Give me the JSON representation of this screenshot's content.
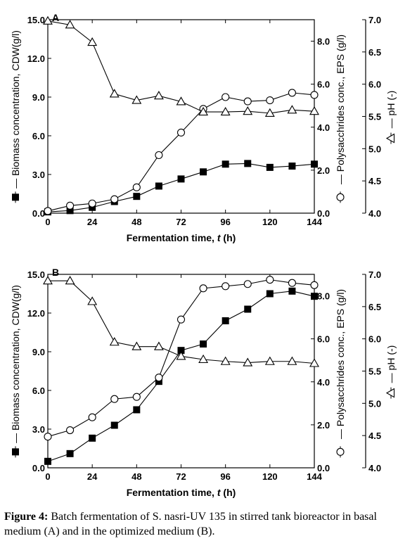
{
  "caption": {
    "label": "Figure 4:",
    "text": "Batch fermentation of S. nasri-UV 135 in stirred tank bioreactor in basal medium (A) and in the optimized medium (B)."
  },
  "colors": {
    "ink": "#000000",
    "background": "#ffffff"
  },
  "chart_data": [
    {
      "type": "line",
      "panel_label": "A",
      "xlabel_text": "Fermentation time, ",
      "xlabel_var": "t",
      "xlabel_unit": " (h)",
      "xlim": [
        0,
        144
      ],
      "xticks": [
        0,
        24,
        48,
        72,
        96,
        120,
        144
      ],
      "axes": {
        "left": {
          "label": "Biomass concentration, CDW(g/l)",
          "lim": [
            0,
            15
          ],
          "ticks": [
            0,
            3,
            6,
            9,
            12,
            15
          ],
          "tick_labels": [
            "0.0",
            "3.0",
            "6.0",
            "9.0",
            "12.0",
            "15.0"
          ]
        },
        "mid": {
          "label": "Polysacchrides conc., EPS (g/l)",
          "lim": [
            0,
            9
          ],
          "ticks": [
            0,
            2,
            4,
            6,
            8
          ],
          "tick_labels": [
            "0.0",
            "2.0",
            "4.0",
            "6.0",
            "8.0"
          ]
        },
        "right": {
          "label": "pH (-)",
          "lim": [
            4.0,
            7.0
          ],
          "ticks": [
            4.0,
            4.5,
            5.0,
            5.5,
            6.0,
            6.5,
            7.0
          ],
          "tick_labels": [
            "4.0",
            "4.5",
            "5.0",
            "5.5",
            "6.0",
            "6.5",
            "7.0"
          ]
        }
      },
      "series": [
        {
          "axis": "left",
          "marker": "square",
          "x": [
            0,
            12,
            24,
            36,
            48,
            60,
            72,
            84,
            96,
            108,
            120,
            132,
            144
          ],
          "y": [
            0.1,
            0.2,
            0.45,
            0.9,
            1.3,
            2.1,
            2.65,
            3.2,
            3.8,
            3.85,
            3.55,
            3.65,
            3.8
          ]
        },
        {
          "axis": "mid",
          "marker": "circle",
          "x": [
            0,
            12,
            24,
            36,
            48,
            60,
            72,
            84,
            96,
            108,
            120,
            132,
            144
          ],
          "y": [
            0.1,
            0.35,
            0.45,
            0.65,
            1.2,
            2.7,
            3.75,
            4.85,
            5.4,
            5.2,
            5.25,
            5.6,
            5.5
          ]
        },
        {
          "axis": "right",
          "marker": "triangle",
          "x": [
            0,
            12,
            24,
            36,
            48,
            60,
            72,
            84,
            96,
            108,
            120,
            132,
            144
          ],
          "y": [
            6.98,
            6.92,
            6.65,
            5.85,
            5.75,
            5.82,
            5.73,
            5.57,
            5.57,
            5.58,
            5.55,
            5.6,
            5.58
          ]
        }
      ]
    },
    {
      "type": "line",
      "panel_label": "B",
      "xlabel_text": "Fermentation time, ",
      "xlabel_var": "t",
      "xlabel_unit": " (h)",
      "xlim": [
        0,
        144
      ],
      "xticks": [
        0,
        24,
        48,
        72,
        96,
        120,
        144
      ],
      "axes": {
        "left": {
          "label": "Biomass concentration, CDW(g/l)",
          "lim": [
            0,
            15
          ],
          "ticks": [
            0,
            3,
            6,
            9,
            12,
            15
          ],
          "tick_labels": [
            "0.0",
            "3.0",
            "6.0",
            "9.0",
            "12.0",
            "15.0"
          ]
        },
        "mid": {
          "label": "Polysacchrides conc., EPS (g/l)",
          "lim": [
            0,
            9
          ],
          "ticks": [
            0,
            2,
            4,
            6,
            8
          ],
          "tick_labels": [
            "0.0",
            "2.0",
            "4.0",
            "6.0",
            "8.0"
          ]
        },
        "right": {
          "label": "pH (-)",
          "lim": [
            4.0,
            7.0
          ],
          "ticks": [
            4.0,
            4.5,
            5.0,
            5.5,
            6.0,
            6.5,
            7.0
          ],
          "tick_labels": [
            "4.0",
            "4.5",
            "5.0",
            "5.5",
            "6.0",
            "6.5",
            "7.0"
          ]
        }
      },
      "series": [
        {
          "axis": "left",
          "marker": "square",
          "x": [
            0,
            12,
            24,
            36,
            48,
            60,
            72,
            84,
            96,
            108,
            120,
            132,
            144
          ],
          "y": [
            0.5,
            1.1,
            2.3,
            3.3,
            4.5,
            6.7,
            9.1,
            9.6,
            11.4,
            12.3,
            13.5,
            13.7,
            13.3
          ]
        },
        {
          "axis": "mid",
          "marker": "circle",
          "x": [
            0,
            12,
            24,
            36,
            48,
            60,
            72,
            84,
            96,
            108,
            120,
            132,
            144
          ],
          "y": [
            1.45,
            1.75,
            2.35,
            3.2,
            3.3,
            4.2,
            6.9,
            8.35,
            8.45,
            8.55,
            8.75,
            8.6,
            8.5
          ]
        },
        {
          "axis": "right",
          "marker": "triangle",
          "x": [
            0,
            12,
            24,
            36,
            48,
            60,
            72,
            84,
            96,
            108,
            120,
            132,
            144
          ],
          "y": [
            6.9,
            6.9,
            6.58,
            5.95,
            5.88,
            5.88,
            5.73,
            5.68,
            5.65,
            5.63,
            5.65,
            5.65,
            5.62
          ]
        }
      ]
    }
  ]
}
